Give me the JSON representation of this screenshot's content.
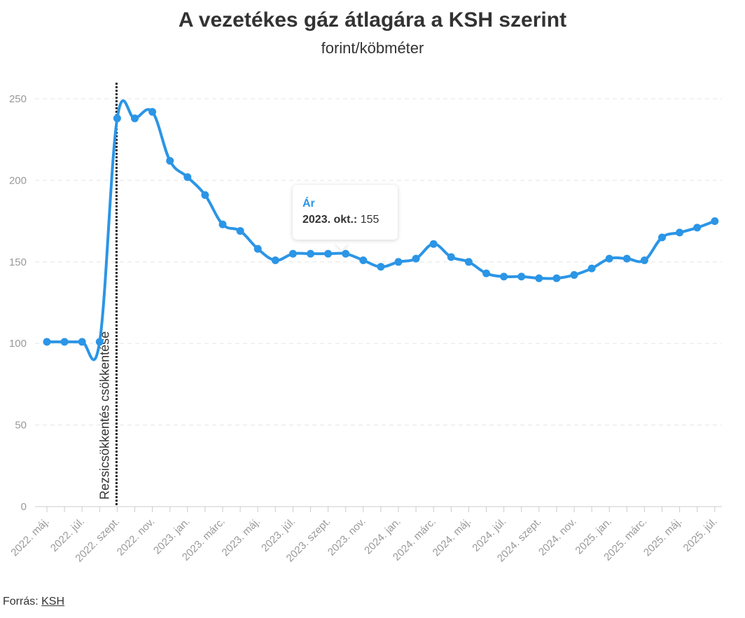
{
  "title": "A vezetékes gáz átlagára a KSH szerint",
  "subtitle": "forint/köbméter",
  "source": {
    "label": "Forrás:",
    "link": "KSH"
  },
  "annotation": "Rezsicsökkentés csökkentése",
  "tooltip": {
    "series": "Ár",
    "date": "2023. okt.:",
    "value": "155"
  },
  "colors": {
    "line": "#2b95e6",
    "grid": "#e6e6e6",
    "axis_text": "#999999",
    "marker_line": "#222222"
  },
  "chart_data": {
    "type": "line",
    "title": "A vezetékes gáz átlagára a KSH szerint",
    "subtitle": "forint/köbméter",
    "xlabel": "",
    "ylabel": "",
    "ylim": [
      0,
      250
    ],
    "yticks": [
      0,
      50,
      100,
      150,
      200,
      250
    ],
    "grid": true,
    "legend": "none",
    "x_tick_labels": [
      "2022. máj.",
      "2022. júl.",
      "2022. szept.",
      "2022. nov.",
      "2023. jan.",
      "2023. márc.",
      "2023. máj.",
      "2023. júl.",
      "2023. szept.",
      "2023. nov.",
      "2024. jan.",
      "2024. márc.",
      "2024. máj.",
      "2024. júl.",
      "2024. szept.",
      "2024. nov.",
      "2025. jan.",
      "2025. márc.",
      "2025. máj.",
      "2025. júl."
    ],
    "vertical_line": {
      "after_category": "2022. aug.",
      "label": "Rezsicsökkentés csökkentése"
    },
    "x": [
      "2022. máj.",
      "2022. jún.",
      "2022. júl.",
      "2022. aug.",
      "2022. szept.",
      "2022. okt.",
      "2022. nov.",
      "2022. dec.",
      "2023. jan.",
      "2023. febr.",
      "2023. márc.",
      "2023. ápr.",
      "2023. máj.",
      "2023. jún.",
      "2023. júl.",
      "2023. aug.",
      "2023. szept.",
      "2023. okt.",
      "2023. nov.",
      "2023. dec.",
      "2024. jan.",
      "2024. febr.",
      "2024. márc.",
      "2024. ápr.",
      "2024. máj.",
      "2024. jún.",
      "2024. júl.",
      "2024. aug.",
      "2024. szept.",
      "2024. okt.",
      "2024. nov.",
      "2024. dec.",
      "2025. jan.",
      "2025. febr.",
      "2025. márc.",
      "2025. ápr.",
      "2025. máj.",
      "2025. jún.",
      "2025. júl."
    ],
    "series": [
      {
        "name": "Ár",
        "values": [
          101,
          101,
          101,
          101,
          238,
          238,
          242,
          212,
          202,
          191,
          173,
          169,
          158,
          151,
          155,
          155,
          155,
          155,
          151,
          147,
          150,
          152,
          161,
          153,
          150,
          143,
          141,
          141,
          140,
          140,
          142,
          146,
          152,
          152,
          151,
          165,
          168,
          171,
          175
        ]
      }
    ]
  }
}
